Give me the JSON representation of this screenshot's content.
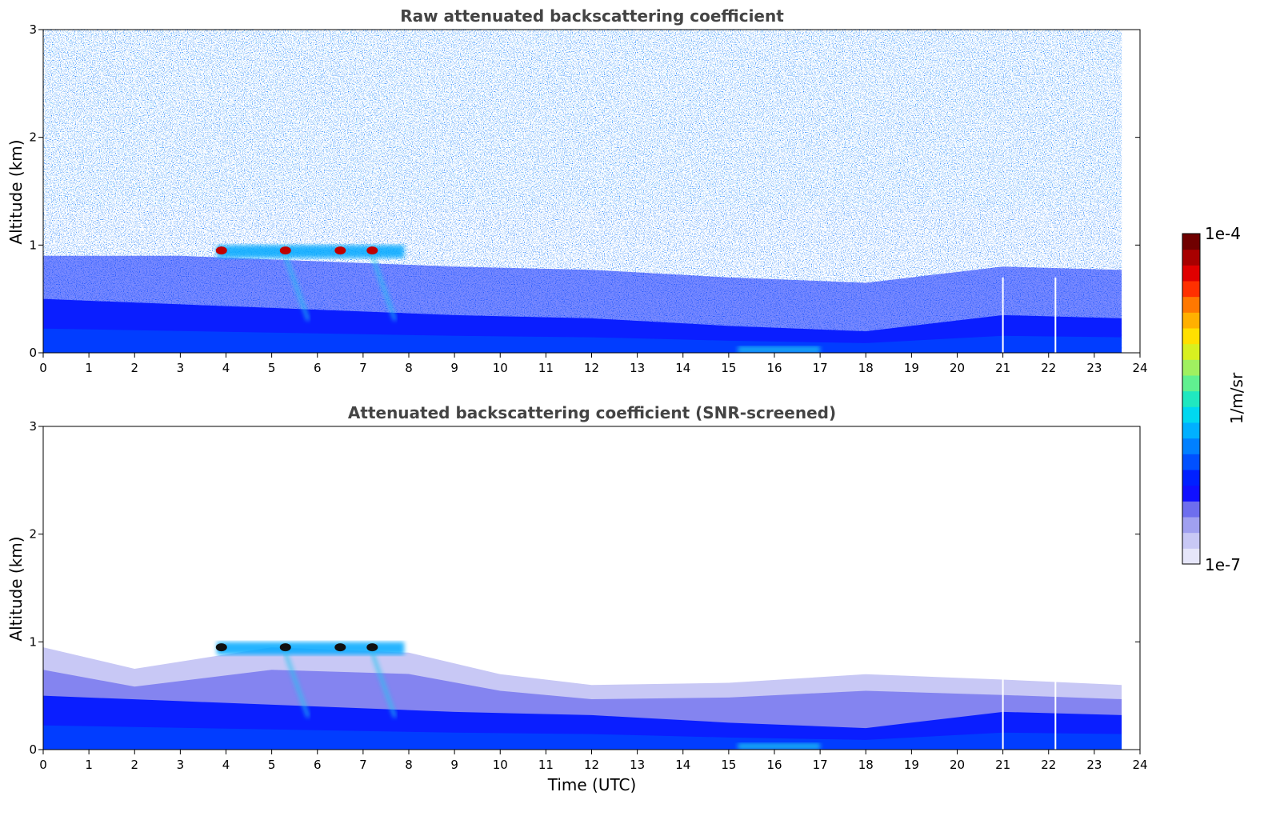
{
  "chart_data": [
    {
      "type": "heatmap",
      "title": "Raw attenuated backscattering coefficient",
      "xlabel": "",
      "ylabel": "Altitude (km)",
      "xlim": [
        0,
        24
      ],
      "ylim": [
        0,
        3
      ],
      "xticks": [
        "0",
        "1",
        "2",
        "3",
        "4",
        "5",
        "6",
        "7",
        "8",
        "9",
        "10",
        "11",
        "12",
        "13",
        "14",
        "15",
        "16",
        "17",
        "18",
        "19",
        "20",
        "21",
        "22",
        "23",
        "24"
      ],
      "yticks": [
        "0",
        "1",
        "2",
        "3"
      ],
      "data_end_hour": 23.6,
      "gaps_hours": [
        21.0,
        22.15
      ],
      "boundary_layer_top_km": [
        {
          "x": 0,
          "y": 0.5
        },
        {
          "x": 3,
          "y": 0.45
        },
        {
          "x": 6,
          "y": 0.4
        },
        {
          "x": 9,
          "y": 0.35
        },
        {
          "x": 12,
          "y": 0.32
        },
        {
          "x": 15,
          "y": 0.25
        },
        {
          "x": 18,
          "y": 0.2
        },
        {
          "x": 21,
          "y": 0.35
        },
        {
          "x": 23.6,
          "y": 0.32
        }
      ],
      "cloud_layer_km": {
        "x_start": 3.8,
        "x_end": 7.9,
        "altitude": 0.95
      },
      "cloud_peaks_hours": [
        3.9,
        5.3,
        6.5,
        7.2
      ],
      "noise": "high"
    },
    {
      "type": "heatmap",
      "title": "Attenuated backscattering coefficient (SNR-screened)",
      "xlabel": "Time (UTC)",
      "ylabel": "Altitude (km)",
      "xlim": [
        0,
        24
      ],
      "ylim": [
        0,
        3
      ],
      "xticks": [
        "0",
        "1",
        "2",
        "3",
        "4",
        "5",
        "6",
        "7",
        "8",
        "9",
        "10",
        "11",
        "12",
        "13",
        "14",
        "15",
        "16",
        "17",
        "18",
        "19",
        "20",
        "21",
        "22",
        "23",
        "24"
      ],
      "yticks": [
        "0",
        "1",
        "2",
        "3"
      ],
      "data_end_hour": 23.6,
      "gaps_hours": [
        21.0,
        22.15
      ],
      "screened_top_km": [
        {
          "x": 0,
          "y": 0.95
        },
        {
          "x": 2,
          "y": 0.75
        },
        {
          "x": 5,
          "y": 0.95
        },
        {
          "x": 8,
          "y": 0.9
        },
        {
          "x": 9,
          "y": 0.8
        },
        {
          "x": 10,
          "y": 0.7
        },
        {
          "x": 12,
          "y": 0.6
        },
        {
          "x": 15,
          "y": 0.62
        },
        {
          "x": 18,
          "y": 0.7
        },
        {
          "x": 21,
          "y": 0.65
        },
        {
          "x": 23.6,
          "y": 0.6
        }
      ],
      "cloud_layer_km": {
        "x_start": 3.8,
        "x_end": 7.9,
        "altitude": 0.95
      },
      "cloud_peaks_hours": [
        3.9,
        5.3,
        6.5,
        7.2
      ],
      "noise": "low"
    }
  ],
  "colorbar": {
    "label": "1/m/sr",
    "max_label": "1e-4",
    "min_label": "1e-7",
    "colors": [
      "#e6e6fa",
      "#c8c8f5",
      "#a0a0f0",
      "#6e6eee",
      "#1010ff",
      "#0020ff",
      "#0050ff",
      "#0080ff",
      "#00b0ff",
      "#00d8f0",
      "#20e8c0",
      "#60f090",
      "#a0f060",
      "#d8f020",
      "#ffe000",
      "#ffb000",
      "#ff7800",
      "#ff3000",
      "#e00000",
      "#a80000",
      "#700000"
    ]
  }
}
